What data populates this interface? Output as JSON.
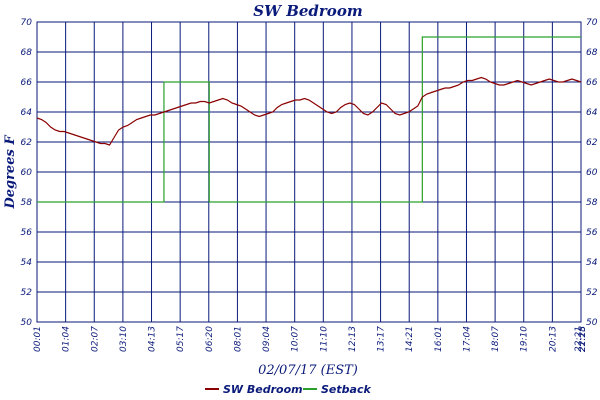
{
  "chart_data": {
    "type": "line",
    "title": "SW Bedroom",
    "xlabel": "02/07/17 (EST)",
    "ylabel": "Degrees F",
    "ylim": [
      50,
      70
    ],
    "y_ticks": [
      "50",
      "52",
      "54",
      "56",
      "58",
      "60",
      "62",
      "64",
      "66",
      "68",
      "70"
    ],
    "x_ticks": [
      "00:01",
      "01:04",
      "02:07",
      "03:10",
      "04:13",
      "05:17",
      "06:20",
      "08:01",
      "09:04",
      "10:07",
      "11:10",
      "12:13",
      "13:17",
      "14:21",
      "16:01",
      "17:04",
      "18:07",
      "19:10",
      "20:13",
      "21:18",
      "22:21",
      "22:25"
    ],
    "grid": true,
    "legend_position": "bottom-center",
    "series": [
      {
        "name": "SW Bedroom",
        "color": "#8b0000",
        "values": [
          63.6,
          63.5,
          63.3,
          63.0,
          62.8,
          62.7,
          62.7,
          62.6,
          62.5,
          62.4,
          62.3,
          62.2,
          62.1,
          62.0,
          61.9,
          61.9,
          61.8,
          62.3,
          62.8,
          63.0,
          63.1,
          63.3,
          63.5,
          63.6,
          63.7,
          63.8,
          63.8,
          63.9,
          64.0,
          64.1,
          64.2,
          64.3,
          64.4,
          64.5,
          64.6,
          64.6,
          64.7,
          64.7,
          64.6,
          64.7,
          64.8,
          64.9,
          64.8,
          64.6,
          64.5,
          64.4,
          64.2,
          64.0,
          63.8,
          63.7,
          63.8,
          63.9,
          64.0,
          64.3,
          64.5,
          64.6,
          64.7,
          64.8,
          64.8,
          64.9,
          64.8,
          64.6,
          64.4,
          64.2,
          64.0,
          63.9,
          64.0,
          64.3,
          64.5,
          64.6,
          64.5,
          64.2,
          63.9,
          63.8,
          64.0,
          64.3,
          64.6,
          64.5,
          64.2,
          63.9,
          63.8,
          63.9,
          64.0,
          64.2,
          64.4,
          65.0,
          65.2,
          65.3,
          65.4,
          65.5,
          65.6,
          65.6,
          65.7,
          65.8,
          66.0,
          66.1,
          66.1,
          66.2,
          66.3,
          66.2,
          66.0,
          65.9,
          65.8,
          65.8,
          65.9,
          66.0,
          66.1,
          66.0,
          65.9,
          65.8,
          65.9,
          66.0,
          66.1,
          66.2,
          66.1,
          66.0,
          66.0,
          66.1,
          66.2,
          66.1,
          66.0
        ]
      },
      {
        "name": "Setback",
        "color": "#2ca02c",
        "values": [
          58,
          58,
          58,
          58,
          58,
          58,
          58,
          58,
          58,
          58,
          58,
          58,
          58,
          58,
          58,
          58,
          58,
          58,
          58,
          58,
          58,
          58,
          58,
          58,
          58,
          58,
          58,
          58,
          66,
          66,
          66,
          66,
          66,
          66,
          66,
          66,
          66,
          66,
          58,
          58,
          58,
          58,
          58,
          58,
          58,
          58,
          58,
          58,
          58,
          58,
          58,
          58,
          58,
          58,
          58,
          58,
          58,
          58,
          58,
          58,
          58,
          58,
          58,
          58,
          58,
          58,
          58,
          58,
          58,
          58,
          58,
          58,
          58,
          58,
          58,
          58,
          58,
          58,
          58,
          58,
          58,
          58,
          58,
          58,
          58,
          69,
          69,
          69,
          69,
          69,
          69,
          69,
          69,
          69,
          69,
          69,
          69,
          69,
          69,
          69,
          69,
          69,
          69,
          69,
          69,
          69,
          69,
          69,
          69,
          69,
          69,
          69,
          69,
          69,
          69,
          69,
          69,
          69,
          69,
          69,
          69
        ]
      }
    ]
  }
}
